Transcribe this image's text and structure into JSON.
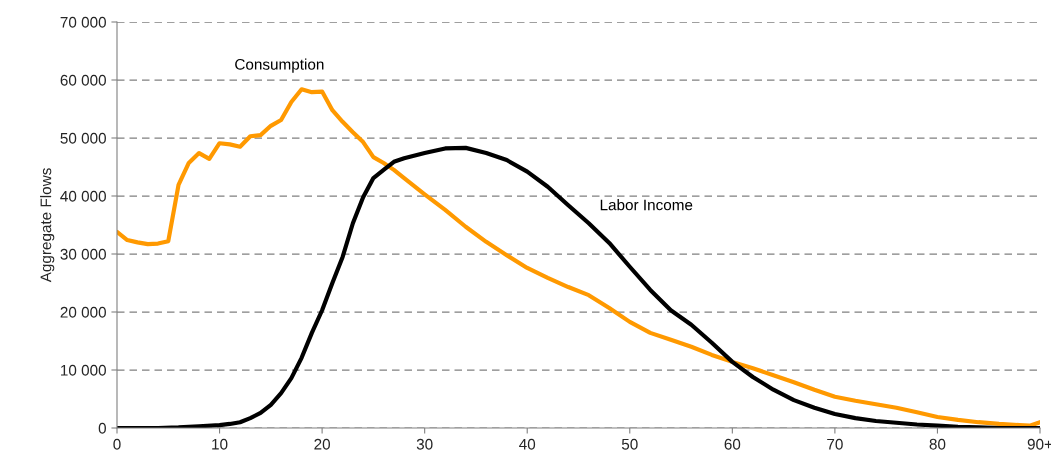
{
  "chart_data": {
    "type": "line",
    "ylabel": "Aggregate Flows",
    "xlim": [
      0,
      90
    ],
    "xticks": [
      0,
      10,
      20,
      30,
      40,
      50,
      60,
      70,
      80,
      {
        "value": 90,
        "label": "90+"
      }
    ],
    "ylim": [
      0,
      70000
    ],
    "yticks": [
      {
        "value": 0,
        "label": "0"
      },
      {
        "value": 10000,
        "label": "10 000"
      },
      {
        "value": 20000,
        "label": "20 000"
      },
      {
        "value": 30000,
        "label": "30 000"
      },
      {
        "value": 40000,
        "label": "40 000"
      },
      {
        "value": 50000,
        "label": "50 000"
      },
      {
        "value": 60000,
        "label": "60 000"
      },
      {
        "value": 70000,
        "label": "70 000"
      }
    ],
    "grid": "y",
    "line_style": "solid",
    "marker": "none",
    "series": [
      {
        "name": "Consumption",
        "color": "#ff9900",
        "x": [
          0,
          1,
          2,
          3,
          4,
          5,
          6,
          7,
          8,
          9,
          10,
          11,
          12,
          13,
          14,
          15,
          16,
          17,
          18,
          19,
          20,
          21,
          22,
          23,
          24,
          25,
          26,
          27,
          28,
          30,
          32,
          34,
          36,
          38,
          40,
          42,
          44,
          46,
          48,
          50,
          52,
          54,
          56,
          58,
          60,
          62,
          64,
          66,
          68,
          70,
          72,
          74,
          76,
          78,
          80,
          82,
          84,
          86,
          88,
          89,
          90
        ],
        "values": [
          33800,
          32400,
          32000,
          31700,
          31800,
          32200,
          41900,
          45700,
          47400,
          46400,
          49100,
          48900,
          48500,
          50300,
          50500,
          52100,
          53100,
          56200,
          58400,
          57900,
          58000,
          54800,
          52800,
          51000,
          49300,
          46700,
          45700,
          44500,
          43100,
          40300,
          37600,
          34700,
          32100,
          29800,
          27600,
          25900,
          24300,
          22900,
          20700,
          18300,
          16400,
          15200,
          14000,
          12600,
          11400,
          10300,
          9100,
          7900,
          6600,
          5400,
          4700,
          4100,
          3500,
          2700,
          1900,
          1400,
          1000,
          700,
          500,
          400,
          1000
        ]
      },
      {
        "name": "Labor Income",
        "color": "#000000",
        "x": [
          0,
          2,
          4,
          6,
          8,
          10,
          11,
          12,
          13,
          14,
          15,
          16,
          17,
          18,
          19,
          20,
          21,
          22,
          23,
          24,
          25,
          26,
          27,
          28,
          30,
          32,
          34,
          36,
          38,
          40,
          42,
          44,
          46,
          48,
          50,
          52,
          54,
          56,
          58,
          60,
          62,
          64,
          66,
          68,
          70,
          72,
          74,
          76,
          78,
          80,
          82,
          84,
          86,
          88,
          90
        ],
        "values": [
          0,
          0,
          0,
          100,
          300,
          500,
          700,
          1000,
          1700,
          2600,
          4000,
          6000,
          8600,
          12100,
          16400,
          20300,
          25000,
          29500,
          35300,
          39800,
          43100,
          44500,
          45900,
          46500,
          47400,
          48200,
          48300,
          47400,
          46200,
          44200,
          41600,
          38400,
          35300,
          31900,
          27800,
          23800,
          20300,
          17800,
          14700,
          11400,
          8800,
          6600,
          4800,
          3500,
          2400,
          1700,
          1200,
          900,
          600,
          400,
          200,
          100,
          0,
          0,
          0
        ]
      }
    ]
  }
}
